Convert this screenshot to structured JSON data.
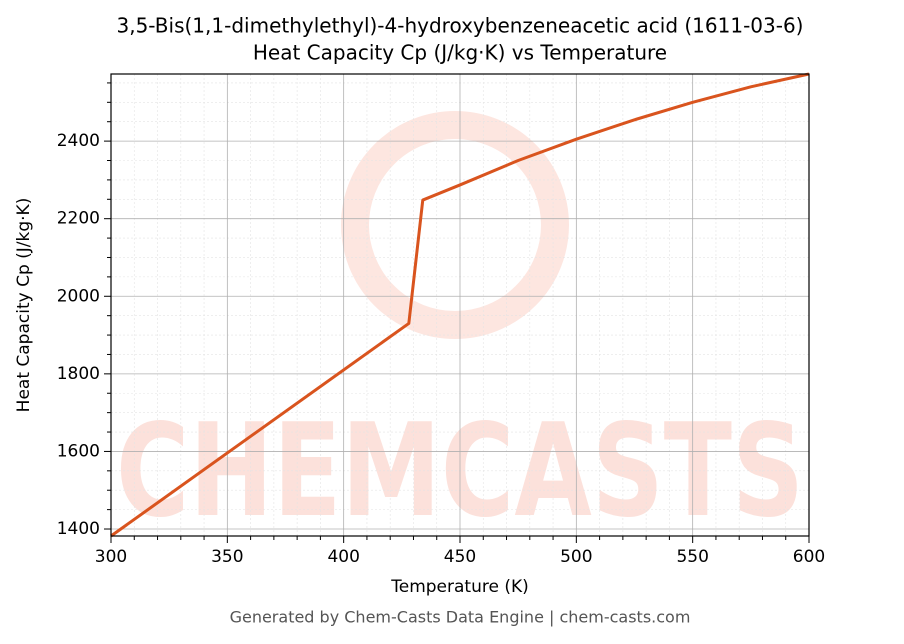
{
  "chart_data": {
    "type": "line",
    "title": "3,5-Bis(1,1-dimethylethyl)-4-hydroxybenzeneacetic acid (1611-03-6)",
    "subtitle": "Heat Capacity Cp (J/kg·K) vs Temperature",
    "x_label": "Temperature (K)",
    "y_label": "Heat Capacity Cp (J/kg·K)",
    "footer": "Generated by Chem-Casts Data Engine | chem-casts.com",
    "watermark": "CHEMCASTS",
    "x": [
      300,
      428,
      434,
      450,
      475,
      500,
      525,
      550,
      575,
      600
    ],
    "series": [
      {
        "name": "Cp",
        "color": "#d9541e",
        "values": [
          1382,
          1930,
          2248,
          2287,
          2350,
          2405,
          2455,
          2500,
          2540,
          2573
        ]
      }
    ],
    "xlim": [
      300,
      600
    ],
    "ylim": [
      1382,
      2573
    ],
    "xticks": [
      300,
      350,
      400,
      450,
      500,
      550,
      600
    ],
    "yticks": [
      1400,
      1600,
      1800,
      2000,
      2200,
      2400
    ],
    "xminorticks": [
      310,
      320,
      330,
      340,
      360,
      370,
      380,
      390,
      410,
      420,
      430,
      440,
      460,
      470,
      480,
      490,
      510,
      520,
      530,
      540,
      560,
      570,
      580,
      590
    ],
    "yminorticks": [
      1450,
      1500,
      1550,
      1650,
      1700,
      1750,
      1850,
      1900,
      1950,
      2050,
      2100,
      2150,
      2250,
      2300,
      2350,
      2450,
      2500,
      2550
    ],
    "grid": true
  }
}
